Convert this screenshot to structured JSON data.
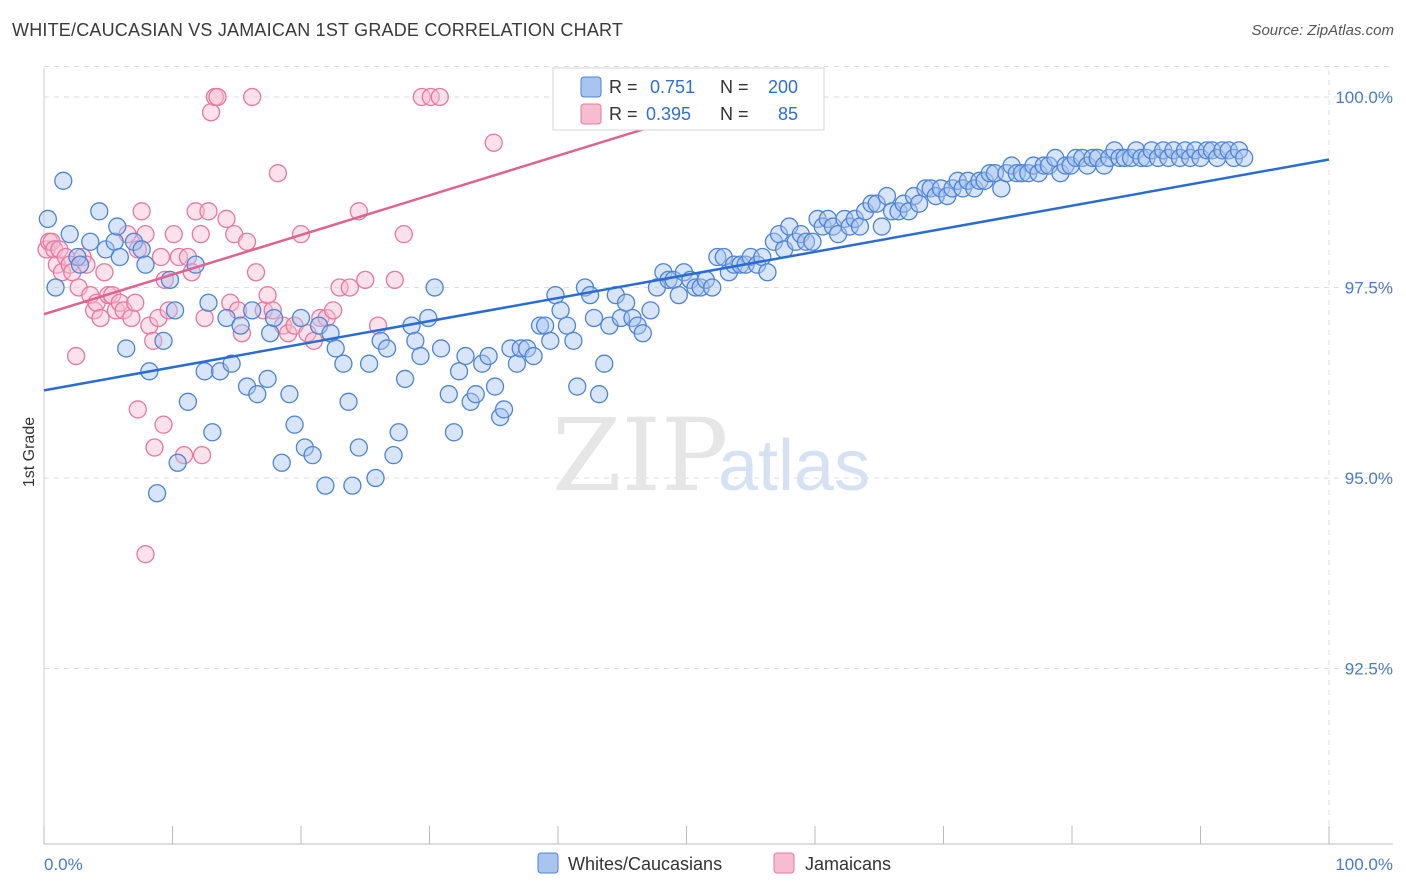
{
  "header": {
    "title": "WHITE/CAUCASIAN VS JAMAICAN 1ST GRADE CORRELATION CHART",
    "source": "Source: ZipAtlas.com"
  },
  "watermark": {
    "zip": "ZIP",
    "atlas": "atlas"
  },
  "colors": {
    "blue_fill": "#a9c4ef",
    "blue_stroke": "#4d84d6",
    "blue_line": "#2a6dd0",
    "pink_fill": "#f6bcd0",
    "pink_stroke": "#e9789e",
    "pink_line": "#e0628e",
    "grid": "#dddddd",
    "tick_label": "#4a7bc8"
  },
  "legend": {
    "r_label": "R =",
    "n_label": "N =",
    "rows": [
      {
        "series": "Whites/Caucasians",
        "r": "0.751",
        "n": "200"
      },
      {
        "series": "Jamaicans",
        "r": "0.395",
        "n": "85"
      }
    ]
  },
  "chart_data": {
    "type": "scatter",
    "title": "WHITE/CAUCASIAN VS JAMAICAN 1ST GRADE CORRELATION CHART",
    "xlabel": "",
    "ylabel": "1st Grade",
    "xlim": [
      0,
      100
    ],
    "ylim": [
      90.0,
      100.4
    ],
    "x_tick_labels": [
      "0.0%",
      "100.0%"
    ],
    "y_ticks": [
      92.5,
      95.0,
      97.5,
      100.0
    ],
    "y_tick_labels": [
      "92.5%",
      "95.0%",
      "97.5%",
      "100.0%"
    ],
    "grid": true,
    "series": [
      {
        "name": "Whites/Caucasians",
        "color": "blue",
        "trend": {
          "x": [
            0,
            100
          ],
          "y": [
            96.15,
            99.18
          ]
        },
        "points": [
          [
            0.3,
            98.4
          ],
          [
            0.9,
            97.5
          ],
          [
            1.5,
            98.9
          ],
          [
            2.0,
            98.2
          ],
          [
            2.6,
            97.9
          ],
          [
            2.8,
            97.8
          ],
          [
            3.6,
            98.1
          ],
          [
            4.3,
            98.5
          ],
          [
            4.8,
            98.0
          ],
          [
            5.5,
            98.1
          ],
          [
            5.7,
            98.3
          ],
          [
            5.9,
            97.9
          ],
          [
            6.4,
            96.7
          ],
          [
            7.0,
            98.1
          ],
          [
            7.6,
            98.0
          ],
          [
            7.9,
            97.8
          ],
          [
            8.2,
            96.4
          ],
          [
            8.8,
            94.8
          ],
          [
            9.3,
            96.8
          ],
          [
            9.8,
            97.6
          ],
          [
            10.2,
            97.2
          ],
          [
            10.4,
            95.2
          ],
          [
            11.2,
            96.0
          ],
          [
            11.8,
            97.8
          ],
          [
            12.5,
            96.4
          ],
          [
            12.8,
            97.3
          ],
          [
            13.1,
            95.6
          ],
          [
            13.7,
            96.4
          ],
          [
            14.2,
            97.1
          ],
          [
            14.6,
            96.5
          ],
          [
            15.3,
            97.0
          ],
          [
            15.8,
            96.2
          ],
          [
            16.2,
            97.2
          ],
          [
            16.6,
            96.1
          ],
          [
            17.4,
            96.3
          ],
          [
            17.6,
            96.9
          ],
          [
            17.9,
            97.1
          ],
          [
            18.5,
            95.2
          ],
          [
            19.1,
            96.1
          ],
          [
            19.5,
            95.7
          ],
          [
            20.0,
            97.1
          ],
          [
            20.3,
            95.4
          ],
          [
            20.9,
            95.3
          ],
          [
            21.4,
            97.0
          ],
          [
            21.9,
            94.9
          ],
          [
            22.3,
            96.9
          ],
          [
            22.7,
            96.7
          ],
          [
            23.3,
            96.5
          ],
          [
            23.7,
            96.0
          ],
          [
            24.0,
            94.9
          ],
          [
            24.5,
            95.4
          ],
          [
            25.3,
            96.5
          ],
          [
            25.8,
            95.0
          ],
          [
            26.2,
            96.8
          ],
          [
            26.7,
            96.7
          ],
          [
            27.2,
            95.3
          ],
          [
            27.6,
            95.6
          ],
          [
            28.1,
            96.3
          ],
          [
            28.6,
            97.0
          ],
          [
            28.9,
            96.8
          ],
          [
            29.3,
            96.6
          ],
          [
            29.9,
            97.1
          ],
          [
            30.4,
            97.5
          ],
          [
            30.9,
            96.7
          ],
          [
            31.5,
            96.1
          ],
          [
            31.9,
            95.6
          ],
          [
            32.3,
            96.4
          ],
          [
            32.8,
            96.6
          ],
          [
            33.2,
            96.0
          ],
          [
            33.6,
            96.1
          ],
          [
            34.1,
            96.5
          ],
          [
            34.6,
            96.6
          ],
          [
            35.1,
            96.2
          ],
          [
            35.5,
            95.8
          ],
          [
            35.8,
            95.9
          ],
          [
            36.3,
            96.7
          ],
          [
            36.8,
            96.5
          ],
          [
            37.1,
            96.7
          ],
          [
            37.6,
            96.7
          ],
          [
            38.1,
            96.6
          ],
          [
            38.6,
            97.0
          ],
          [
            39.0,
            97.0
          ],
          [
            39.4,
            96.8
          ],
          [
            39.8,
            97.4
          ],
          [
            40.2,
            97.2
          ],
          [
            40.7,
            97.0
          ],
          [
            41.2,
            96.8
          ],
          [
            41.5,
            96.2
          ],
          [
            42.1,
            97.5
          ],
          [
            42.5,
            97.4
          ],
          [
            42.8,
            97.1
          ],
          [
            43.2,
            96.1
          ],
          [
            43.6,
            96.5
          ],
          [
            44.0,
            97.0
          ],
          [
            44.5,
            97.4
          ],
          [
            44.9,
            97.1
          ],
          [
            45.3,
            97.3
          ],
          [
            45.8,
            97.1
          ],
          [
            46.2,
            97.0
          ],
          [
            46.6,
            96.9
          ],
          [
            47.2,
            97.2
          ],
          [
            47.7,
            97.5
          ],
          [
            48.2,
            97.7
          ],
          [
            48.6,
            97.6
          ],
          [
            49.0,
            97.6
          ],
          [
            49.4,
            97.4
          ],
          [
            49.8,
            97.7
          ],
          [
            50.3,
            97.6
          ],
          [
            50.7,
            97.5
          ],
          [
            51.1,
            97.5
          ],
          [
            51.5,
            97.6
          ],
          [
            52.0,
            97.5
          ],
          [
            52.4,
            97.9
          ],
          [
            52.9,
            97.9
          ],
          [
            53.3,
            97.7
          ],
          [
            53.7,
            97.8
          ],
          [
            54.2,
            97.8
          ],
          [
            54.6,
            97.8
          ],
          [
            55.0,
            97.9
          ],
          [
            55.5,
            97.8
          ],
          [
            55.9,
            97.9
          ],
          [
            56.3,
            97.7
          ],
          [
            56.8,
            98.1
          ],
          [
            57.2,
            98.2
          ],
          [
            57.6,
            98.0
          ],
          [
            58.0,
            98.3
          ],
          [
            58.5,
            98.1
          ],
          [
            58.9,
            98.2
          ],
          [
            59.3,
            98.1
          ],
          [
            59.8,
            98.1
          ],
          [
            60.2,
            98.4
          ],
          [
            60.6,
            98.3
          ],
          [
            61.0,
            98.4
          ],
          [
            61.4,
            98.3
          ],
          [
            61.8,
            98.2
          ],
          [
            62.3,
            98.4
          ],
          [
            62.7,
            98.3
          ],
          [
            63.1,
            98.4
          ],
          [
            63.5,
            98.3
          ],
          [
            63.9,
            98.5
          ],
          [
            64.4,
            98.6
          ],
          [
            64.8,
            98.6
          ],
          [
            65.2,
            98.3
          ],
          [
            65.6,
            98.7
          ],
          [
            66.0,
            98.5
          ],
          [
            66.5,
            98.5
          ],
          [
            66.9,
            98.6
          ],
          [
            67.3,
            98.5
          ],
          [
            67.7,
            98.7
          ],
          [
            68.1,
            98.6
          ],
          [
            68.6,
            98.8
          ],
          [
            69.0,
            98.8
          ],
          [
            69.4,
            98.7
          ],
          [
            69.8,
            98.8
          ],
          [
            70.3,
            98.7
          ],
          [
            70.7,
            98.8
          ],
          [
            71.1,
            98.9
          ],
          [
            71.5,
            98.8
          ],
          [
            71.9,
            98.9
          ],
          [
            72.4,
            98.8
          ],
          [
            72.8,
            98.9
          ],
          [
            73.2,
            98.9
          ],
          [
            73.6,
            99.0
          ],
          [
            74.0,
            99.0
          ],
          [
            74.5,
            98.8
          ],
          [
            74.9,
            99.0
          ],
          [
            75.3,
            99.1
          ],
          [
            75.7,
            99.0
          ],
          [
            76.1,
            99.0
          ],
          [
            76.6,
            99.0
          ],
          [
            77.0,
            99.1
          ],
          [
            77.4,
            99.0
          ],
          [
            77.8,
            99.1
          ],
          [
            78.2,
            99.1
          ],
          [
            78.7,
            99.2
          ],
          [
            79.1,
            99.0
          ],
          [
            79.5,
            99.1
          ],
          [
            79.9,
            99.1
          ],
          [
            80.3,
            99.2
          ],
          [
            80.8,
            99.2
          ],
          [
            81.2,
            99.1
          ],
          [
            81.6,
            99.2
          ],
          [
            82.0,
            99.2
          ],
          [
            82.5,
            99.1
          ],
          [
            82.9,
            99.2
          ],
          [
            83.3,
            99.3
          ],
          [
            83.7,
            99.2
          ],
          [
            84.1,
            99.2
          ],
          [
            84.6,
            99.2
          ],
          [
            85.0,
            99.3
          ],
          [
            85.4,
            99.2
          ],
          [
            85.8,
            99.2
          ],
          [
            86.2,
            99.3
          ],
          [
            86.7,
            99.2
          ],
          [
            87.1,
            99.3
          ],
          [
            87.5,
            99.2
          ],
          [
            87.9,
            99.3
          ],
          [
            88.4,
            99.2
          ],
          [
            88.8,
            99.3
          ],
          [
            89.2,
            99.2
          ],
          [
            89.6,
            99.3
          ],
          [
            90.0,
            99.2
          ],
          [
            90.5,
            99.3
          ],
          [
            90.9,
            99.3
          ],
          [
            91.3,
            99.2
          ],
          [
            91.7,
            99.3
          ],
          [
            92.2,
            99.3
          ],
          [
            92.6,
            99.2
          ],
          [
            93.0,
            99.3
          ],
          [
            93.4,
            99.2
          ]
        ]
      },
      {
        "name": "Jamaicans",
        "color": "pink",
        "trend": {
          "x": [
            0,
            50
          ],
          "y": [
            97.15,
            99.75
          ]
        },
        "points": [
          [
            0.2,
            98.0
          ],
          [
            0.4,
            98.1
          ],
          [
            0.6,
            98.1
          ],
          [
            0.8,
            98.0
          ],
          [
            1.0,
            97.8
          ],
          [
            1.2,
            98.0
          ],
          [
            1.4,
            97.7
          ],
          [
            1.7,
            97.9
          ],
          [
            2.0,
            97.8
          ],
          [
            2.2,
            97.7
          ],
          [
            2.5,
            96.6
          ],
          [
            2.7,
            97.5
          ],
          [
            3.0,
            97.9
          ],
          [
            3.3,
            97.8
          ],
          [
            3.6,
            97.4
          ],
          [
            3.9,
            97.2
          ],
          [
            4.1,
            97.3
          ],
          [
            4.4,
            97.1
          ],
          [
            4.7,
            97.7
          ],
          [
            5.0,
            97.4
          ],
          [
            5.3,
            97.4
          ],
          [
            5.6,
            97.2
          ],
          [
            5.9,
            97.3
          ],
          [
            6.2,
            97.2
          ],
          [
            6.5,
            98.2
          ],
          [
            6.8,
            97.1
          ],
          [
            7.1,
            97.3
          ],
          [
            7.3,
            98.0
          ],
          [
            7.6,
            98.5
          ],
          [
            7.9,
            98.2
          ],
          [
            8.2,
            97.0
          ],
          [
            8.5,
            96.8
          ],
          [
            8.9,
            97.1
          ],
          [
            9.1,
            97.9
          ],
          [
            9.4,
            97.6
          ],
          [
            9.7,
            97.2
          ],
          [
            10.1,
            98.2
          ],
          [
            10.5,
            97.9
          ],
          [
            10.9,
            95.3
          ],
          [
            11.2,
            97.9
          ],
          [
            11.5,
            97.7
          ],
          [
            11.8,
            98.5
          ],
          [
            12.2,
            98.2
          ],
          [
            12.5,
            97.1
          ],
          [
            12.8,
            98.5
          ],
          [
            13.0,
            99.8
          ],
          [
            13.3,
            100.0
          ],
          [
            13.5,
            100.0
          ],
          [
            14.2,
            98.4
          ],
          [
            14.5,
            97.3
          ],
          [
            14.8,
            98.2
          ],
          [
            15.1,
            97.2
          ],
          [
            15.4,
            96.9
          ],
          [
            15.8,
            98.1
          ],
          [
            16.2,
            100.0
          ],
          [
            16.5,
            97.7
          ],
          [
            17.1,
            97.2
          ],
          [
            17.4,
            97.4
          ],
          [
            17.8,
            97.2
          ],
          [
            18.2,
            99.0
          ],
          [
            18.6,
            97.0
          ],
          [
            19.0,
            96.9
          ],
          [
            19.5,
            97.0
          ],
          [
            20.0,
            98.2
          ],
          [
            20.5,
            96.9
          ],
          [
            21.0,
            96.8
          ],
          [
            21.5,
            97.1
          ],
          [
            22.0,
            97.1
          ],
          [
            22.5,
            97.2
          ],
          [
            23.0,
            97.5
          ],
          [
            23.8,
            97.5
          ],
          [
            24.5,
            98.5
          ],
          [
            25.0,
            97.6
          ],
          [
            26.0,
            97.0
          ],
          [
            27.3,
            97.6
          ],
          [
            28.0,
            98.2
          ],
          [
            29.4,
            100.0
          ],
          [
            30.1,
            100.0
          ],
          [
            30.8,
            100.0
          ],
          [
            35.0,
            99.4
          ],
          [
            8.6,
            95.4
          ],
          [
            9.3,
            95.7
          ],
          [
            7.3,
            95.9
          ],
          [
            7.9,
            94.0
          ],
          [
            12.3,
            95.3
          ]
        ]
      }
    ]
  },
  "bottom_legend": {
    "items": [
      "Whites/Caucasians",
      "Jamaicans"
    ]
  }
}
